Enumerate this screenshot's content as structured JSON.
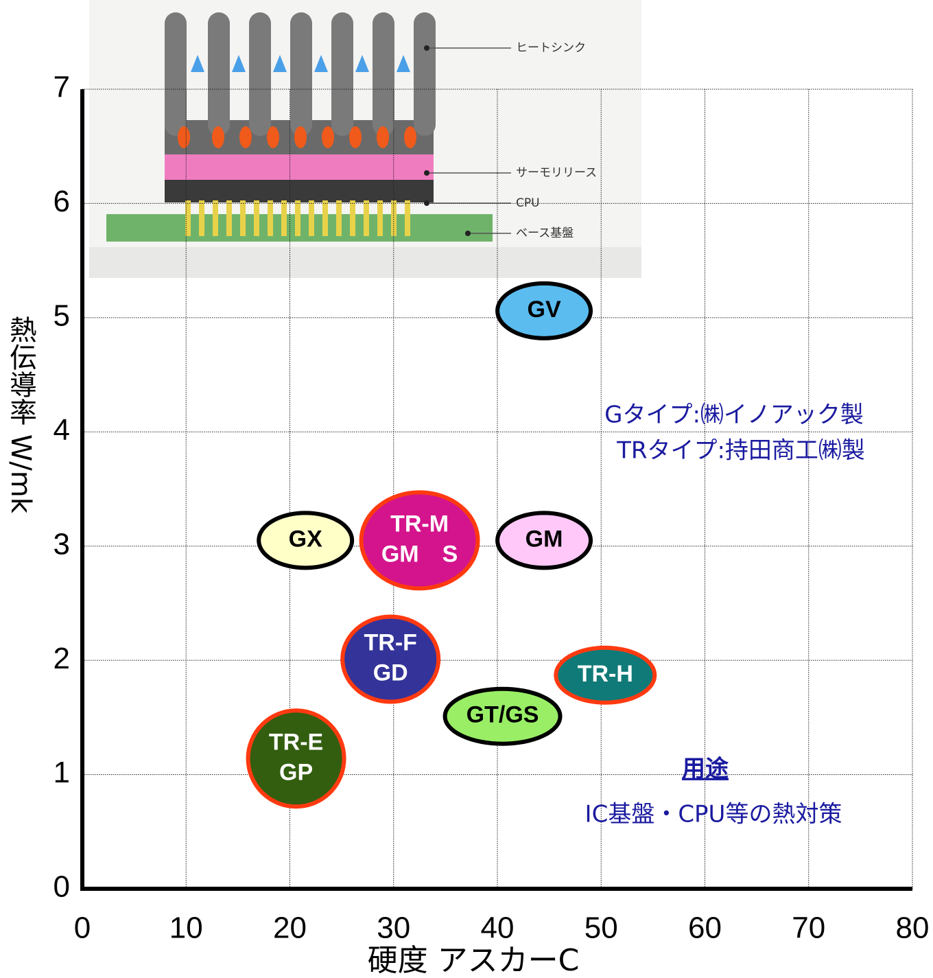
{
  "chart_data": {
    "type": "scatter",
    "xlabel": "硬度 アスカーC",
    "ylabel": "熱伝導率 W/mk",
    "xlim": [
      0,
      80
    ],
    "xticks": [
      0,
      10,
      20,
      30,
      40,
      50,
      60,
      70,
      80
    ],
    "ylim": [
      0,
      7
    ],
    "yticks": [
      0,
      1,
      2,
      3,
      4,
      5,
      6,
      7
    ],
    "grid": true,
    "points": [
      {
        "label": [
          "GV"
        ],
        "x": 44.5,
        "y": 5.06,
        "fill": "#5bbcf0",
        "stroke": "#000000",
        "text_color": "#000000"
      },
      {
        "label": [
          "GX"
        ],
        "x": 21.5,
        "y": 3.05,
        "fill": "#ffffc8",
        "stroke": "#000000",
        "text_color": "#000000"
      },
      {
        "label": [
          "TR-M",
          "GM　S"
        ],
        "x": 32.5,
        "y": 3.05,
        "fill": "#d4148c",
        "stroke": "#ff3a10",
        "text_color": "#ffffff"
      },
      {
        "label": [
          "GM"
        ],
        "x": 44.5,
        "y": 3.05,
        "fill": "#ffc8f8",
        "stroke": "#000000",
        "text_color": "#000000"
      },
      {
        "label": [
          "TR-F",
          "GD"
        ],
        "x": 29.7,
        "y": 2.01,
        "fill": "#333399",
        "stroke": "#ff3a10",
        "text_color": "#ffffff"
      },
      {
        "label": [
          "TR-H"
        ],
        "x": 50.4,
        "y": 1.87,
        "fill": "#107a78",
        "stroke": "#ff3a10",
        "text_color": "#ffffff"
      },
      {
        "label": [
          "GT/GS"
        ],
        "x": 40.5,
        "y": 1.51,
        "fill": "#99ee66",
        "stroke": "#000000",
        "text_color": "#000000"
      },
      {
        "label": [
          "TR-E",
          "GP"
        ],
        "x": 20.6,
        "y": 1.14,
        "fill": "#335e10",
        "stroke": "#ff3a10",
        "text_color": "#ffffff"
      }
    ],
    "annotations": [
      "Gタイプ:㈱イノアック製",
      "TRタイプ:持田商工㈱製",
      "用途",
      "IC基盤・CPU等の熱対策"
    ],
    "image_labels": [
      "ヒートシンク",
      "サーモリリース",
      "CPU",
      "ベース基盤"
    ]
  }
}
